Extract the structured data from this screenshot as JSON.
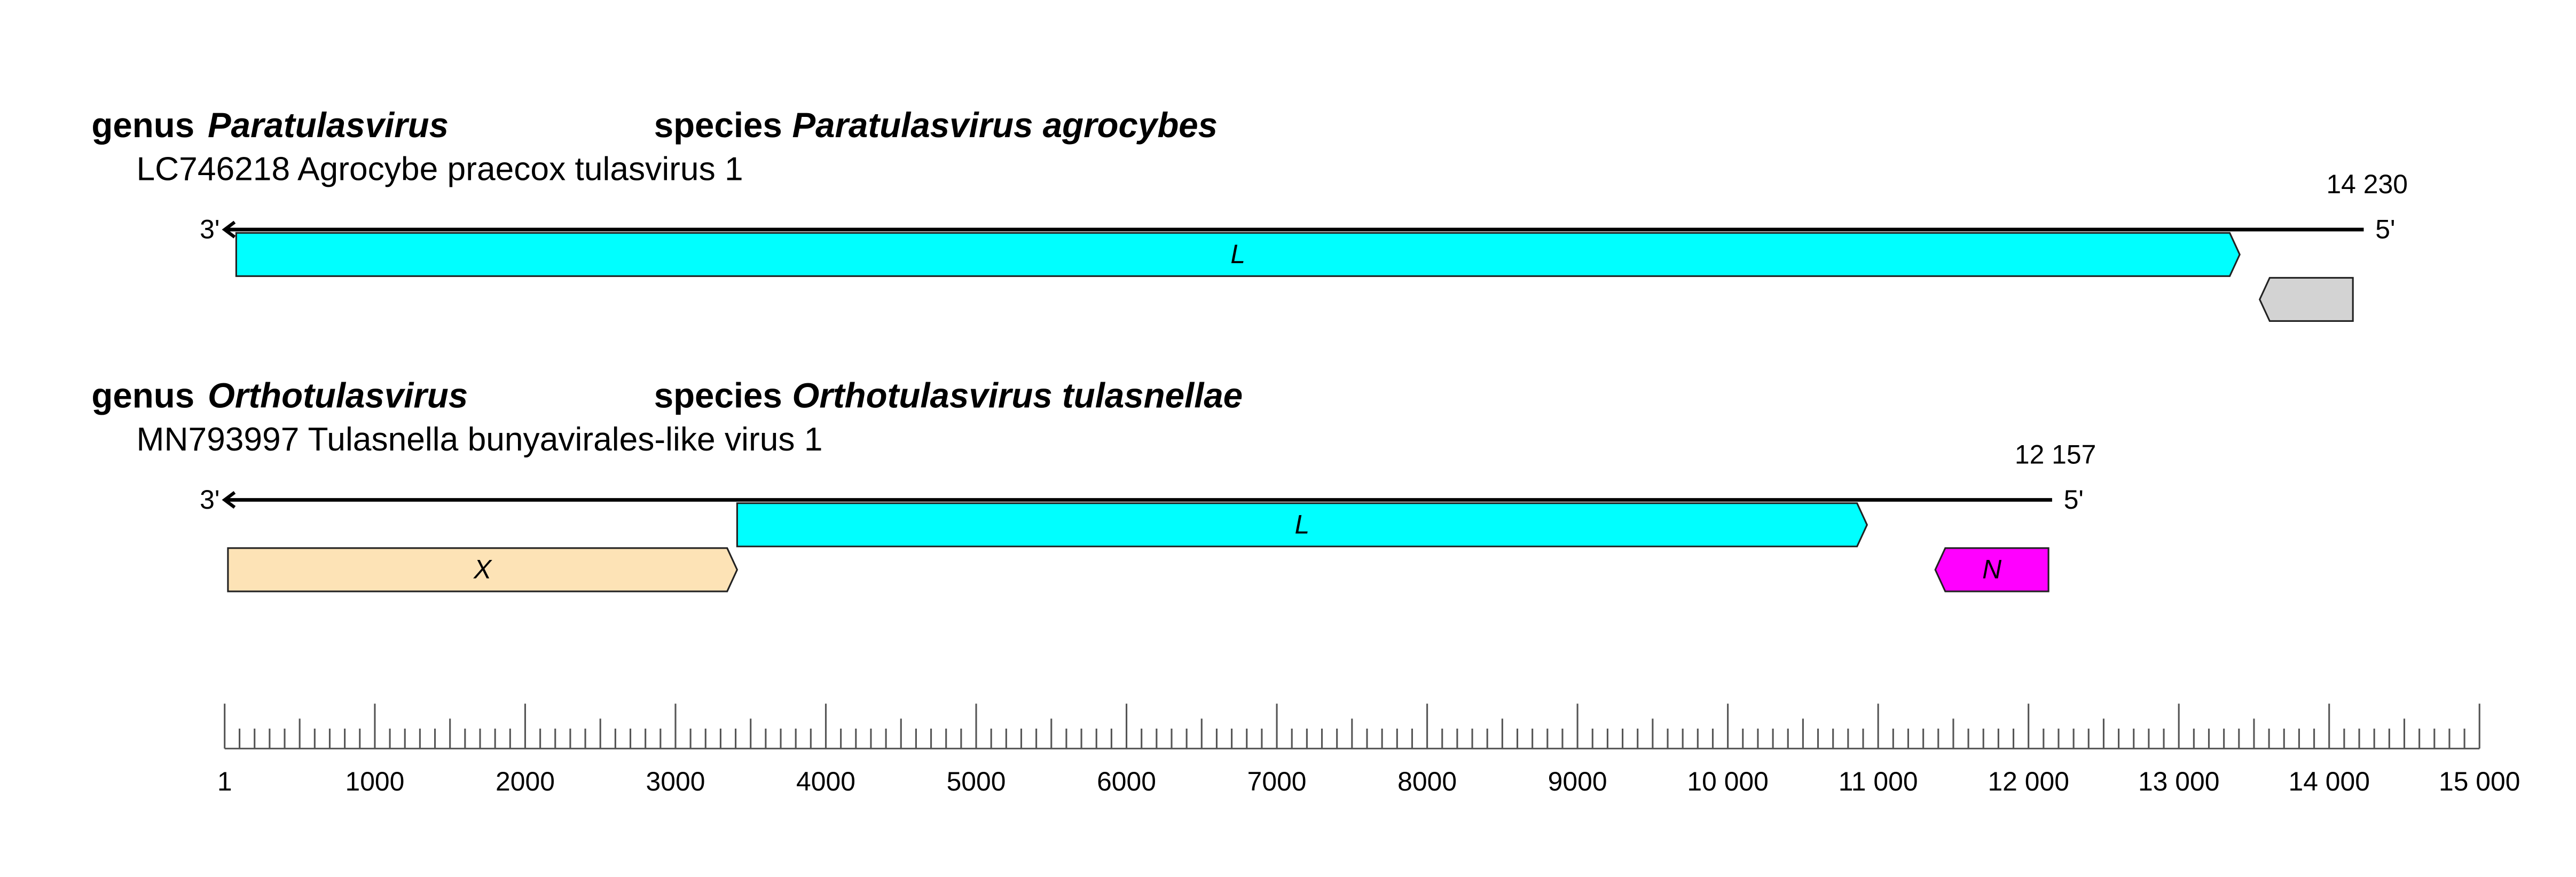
{
  "labels": {
    "genus": "genus",
    "species": "species",
    "end3": "3'",
    "end5": "5'"
  },
  "genomes": [
    {
      "genus": "Paratulasvirus",
      "species": "Paratulasvirus agrocybes",
      "accession": "LC746218 Agrocybe praecox tulasvirus 1",
      "length": 14230,
      "length_label": "14 230",
      "orfs": [
        {
          "name": "L",
          "start": 78,
          "end": 13405,
          "direction": "right",
          "color": "#00ffff"
        },
        {
          "start": 13538,
          "end": 14158,
          "direction": "left",
          "color": "#d3d3d3"
        }
      ]
    },
    {
      "genus": "Orthotulasvirus",
      "species": "Orthotulasvirus tulasnellae",
      "accession": "MN793997 Tulasnella bunyavirales-like virus 1",
      "length": 12157,
      "length_label": "12 157",
      "orfs": [
        {
          "name": "X",
          "start": 23,
          "end": 3410,
          "direction": "right",
          "color": "#fde3b6"
        },
        {
          "name": "L",
          "start": 3410,
          "end": 10926,
          "direction": "right",
          "color": "#00ffff"
        },
        {
          "name": "N",
          "start": 11380,
          "end": 12133,
          "direction": "left",
          "color": "#ff00ff"
        }
      ]
    }
  ],
  "scale": {
    "xlim": [
      1,
      15000
    ],
    "ticks": [
      1,
      1000,
      2000,
      3000,
      4000,
      5000,
      6000,
      7000,
      8000,
      9000,
      {
        "value": 10000,
        "label": "10 000"
      },
      {
        "value": 11000,
        "label": "11 000"
      },
      {
        "value": 12000,
        "label": "12 000"
      },
      {
        "value": 13000,
        "label": "13 000"
      },
      {
        "value": 14000,
        "label": "14 000"
      },
      {
        "value": 15000,
        "label": "15 000"
      }
    ]
  }
}
